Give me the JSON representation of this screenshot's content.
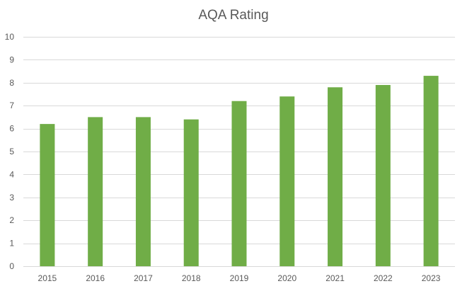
{
  "chart_data": {
    "type": "bar",
    "title": "AQA Rating",
    "xlabel": "",
    "ylabel": "",
    "categories": [
      "2015",
      "2016",
      "2017",
      "2018",
      "2019",
      "2020",
      "2021",
      "2022",
      "2023"
    ],
    "values": [
      6.2,
      6.5,
      6.5,
      6.4,
      7.2,
      7.4,
      7.8,
      7.9,
      8.3
    ],
    "ylim": [
      0,
      10
    ],
    "yticks": [
      "0",
      "1",
      "2",
      "3",
      "4",
      "5",
      "6",
      "7",
      "8",
      "9",
      "10"
    ],
    "grid": true,
    "legend": "none",
    "colors": {
      "bar": "#70ad47",
      "grid": "#d9d9d9",
      "text": "#595959"
    }
  }
}
